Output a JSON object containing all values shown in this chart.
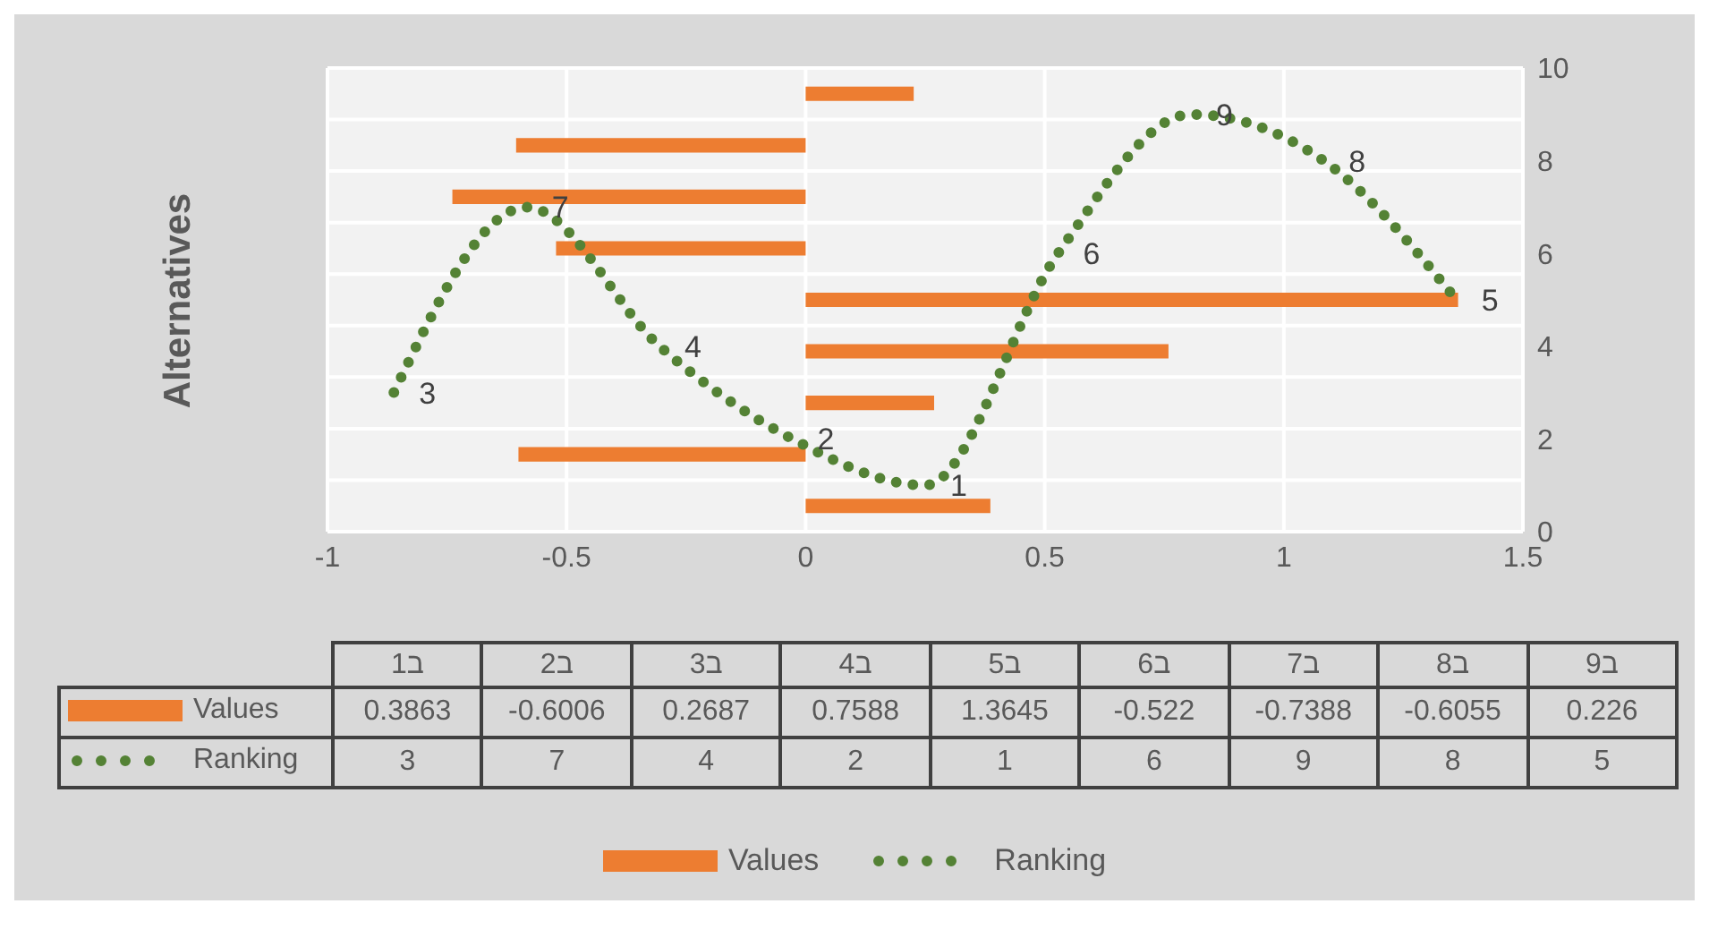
{
  "chart_data": [
    {
      "type": "bar",
      "orientation": "horizontal",
      "ylabel": "Alternatives",
      "categories": [
        null,
        null,
        null,
        null,
        null,
        null,
        null,
        null,
        null
      ],
      "series": [
        {
          "name": "Values",
          "color": "#ed7d31",
          "values": [
            0.226,
            -0.6055,
            -0.7388,
            -0.522,
            1.3645,
            0.7588,
            0.2687,
            -0.6006,
            0.3863
          ]
        }
      ],
      "xlim": [
        -1,
        1.5
      ],
      "xticks": [
        -1,
        -0.5,
        0,
        0.5,
        1,
        1.5
      ],
      "tick_labels": "x",
      "grid": true,
      "legend": "bottom"
    },
    {
      "type": "line",
      "categories": [
        null,
        null,
        null,
        null,
        null,
        null,
        null,
        null,
        null
      ],
      "series": [
        {
          "name": "Ranking",
          "color": "#548235",
          "line_style": "dotted",
          "values": [
            3,
            7,
            4,
            2,
            1,
            6,
            9,
            8,
            5
          ]
        }
      ],
      "ylim": [
        0,
        10
      ],
      "yticks": [
        0,
        2,
        4,
        6,
        8,
        10
      ],
      "tick_labels": "y",
      "data_labels": true,
      "legend": "bottom"
    },
    {
      "type": "other",
      "categories": [
        "ב1",
        "ב2",
        "ב3",
        "ב4",
        "ב5",
        "ב6",
        "ב7",
        "ב8",
        "ב9"
      ],
      "series": [
        {
          "name": "Values",
          "color": "#ed7d31",
          "values": [
            0.3863,
            -0.6006,
            0.2687,
            0.7588,
            1.3645,
            -0.522,
            -0.7388,
            -0.6055,
            0.226
          ]
        },
        {
          "name": "Ranking",
          "color": "#548235",
          "line_style": "dotted",
          "values": [
            3,
            7,
            4,
            2,
            1,
            6,
            9,
            8,
            5
          ]
        }
      ],
      "data_labels": true
    }
  ]
}
